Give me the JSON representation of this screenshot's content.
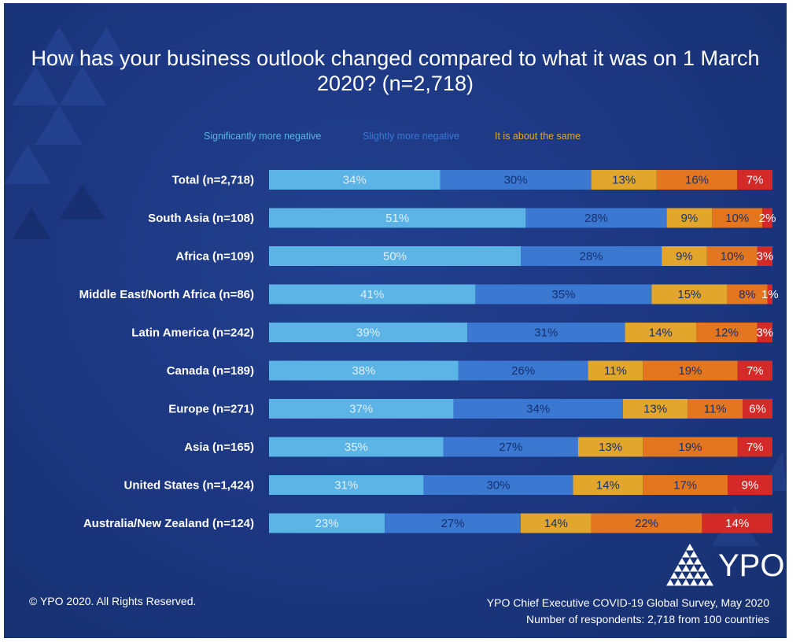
{
  "title": "How has your business outlook changed compared to what it was on 1 March 2020? (n=2,718)",
  "footer": {
    "copyright": "© YPO 2020. All Rights Reserved.",
    "source_line1": "YPO Chief Executive COVID-19 Global Survey, May 2020",
    "source_line2": "Number of respondents: 2,718 from 100 countries"
  },
  "logo": {
    "text": "YPO"
  },
  "colors": {
    "significantly_more_negative": "#5cb3e6",
    "slightly_more_negative": "#3a78d2",
    "about_the_same": "#e2a62c",
    "seg4": "#e3761f",
    "seg5": "#d42a27",
    "background": "#1c3680"
  },
  "chart_data": {
    "type": "bar",
    "orientation": "horizontal",
    "stacked": true,
    "title": "How has your business outlook changed compared to what it was on 1 March 2020? (n=2,718)",
    "xlim": [
      0,
      100
    ],
    "unit": "%",
    "categories": [
      "Total (n=2,718)",
      "South Asia (n=108)",
      "Africa (n=109)",
      "Middle East/North Africa (n=86)",
      "Latin America (n=242)",
      "Canada (n=189)",
      "Europe (n=271)",
      "Asia (n=165)",
      "United States (n=1,424)",
      "Australia/New Zealand (n=124)"
    ],
    "legend": [
      {
        "name": "Significantly more negative",
        "color": "#5cb3e6"
      },
      {
        "name": "Slightly more negative",
        "color": "#3a78d2"
      },
      {
        "name": "It is about the same",
        "color": "#e2a62c"
      }
    ],
    "series": [
      {
        "name": "Significantly more negative",
        "color": "#5cb3e6",
        "values": [
          34,
          51,
          50,
          41,
          39,
          38,
          37,
          35,
          31,
          23
        ]
      },
      {
        "name": "Slightly more negative",
        "color": "#3a78d2",
        "values": [
          30,
          28,
          28,
          35,
          31,
          26,
          34,
          27,
          30,
          27
        ]
      },
      {
        "name": "It is about the same",
        "color": "#e2a62c",
        "values": [
          13,
          9,
          9,
          15,
          14,
          11,
          13,
          13,
          14,
          14
        ]
      },
      {
        "color": "#e3761f",
        "values": [
          16,
          10,
          10,
          8,
          12,
          19,
          11,
          19,
          17,
          22
        ]
      },
      {
        "color": "#d42a27",
        "values": [
          7,
          2,
          3,
          1,
          3,
          7,
          6,
          7,
          9,
          14
        ]
      }
    ]
  }
}
